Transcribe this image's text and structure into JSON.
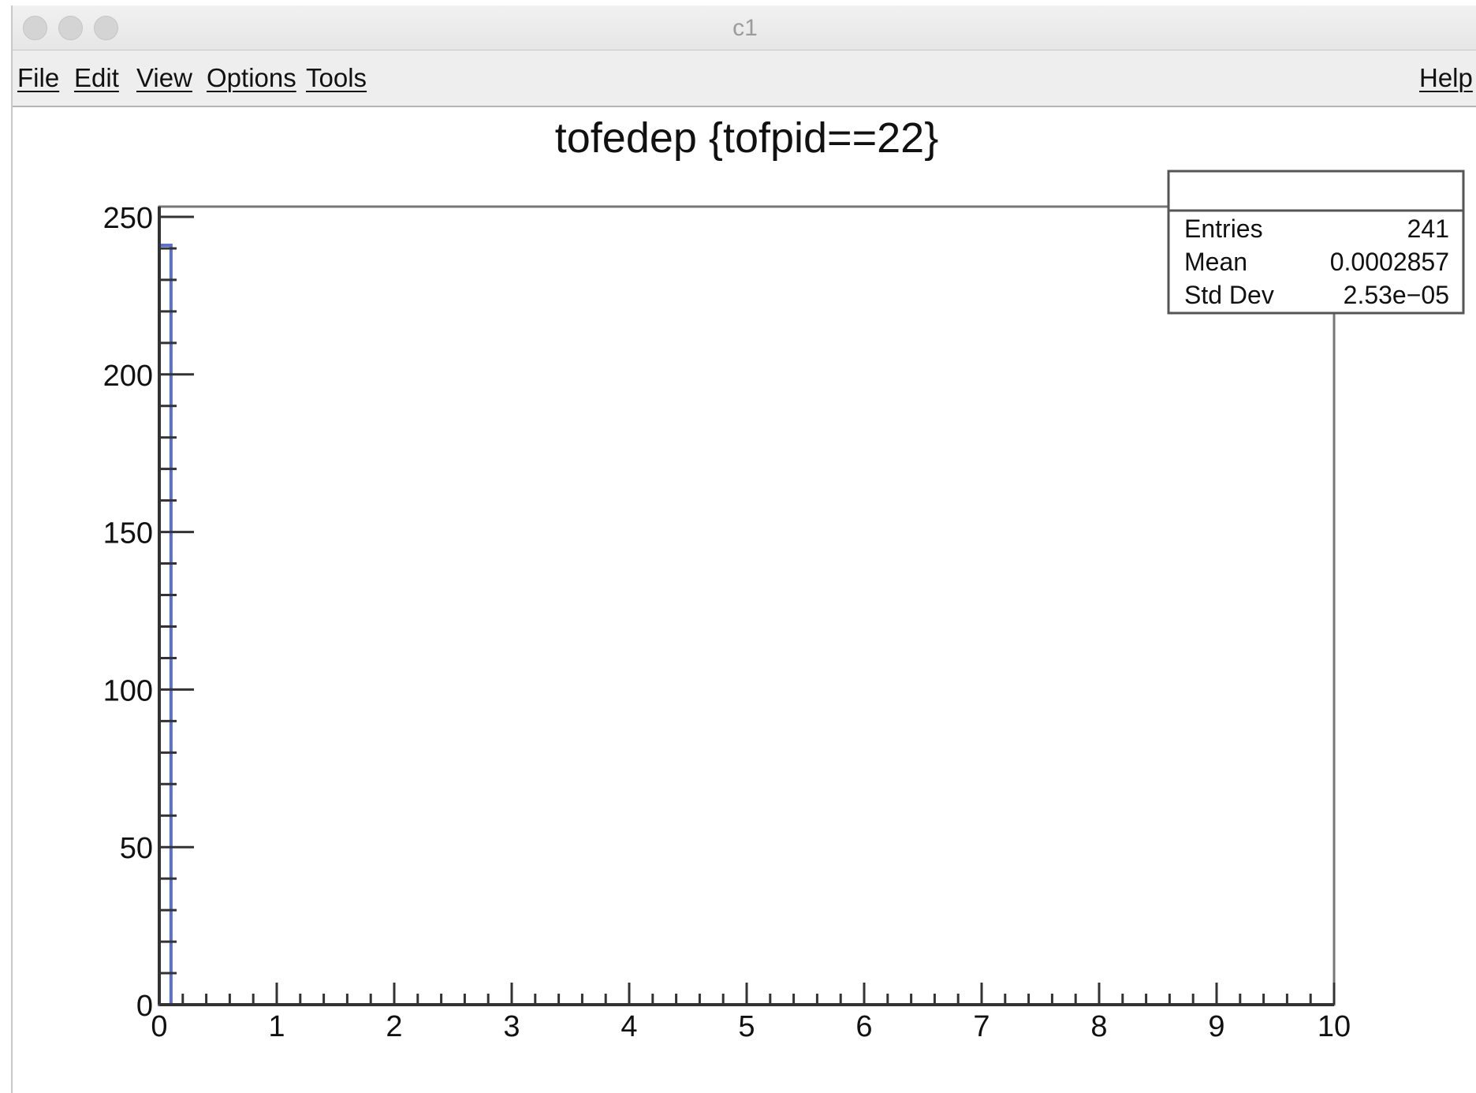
{
  "window": {
    "title": "c1"
  },
  "menu": {
    "file": "File",
    "edit": "Edit",
    "view": "View",
    "options": "Options",
    "tools": "Tools",
    "help": "Help"
  },
  "colors": {
    "histogram_line": "#5b6fd6",
    "frame": "#333333"
  },
  "chart_data": {
    "type": "bar",
    "title": "tofedep {tofpid==22}",
    "xlabel": "",
    "ylabel": "",
    "xlim": [
      0,
      10
    ],
    "ylim": [
      0,
      250
    ],
    "x_ticks": [
      0,
      1,
      2,
      3,
      4,
      5,
      6,
      7,
      8,
      9,
      10
    ],
    "y_ticks": [
      0,
      50,
      100,
      150,
      200,
      250
    ],
    "bins": [
      {
        "x_low": 0.0,
        "x_high": 0.1,
        "count": 241
      }
    ],
    "stats": {
      "name": "",
      "rows": [
        {
          "label": "Entries",
          "value": "241"
        },
        {
          "label": "Mean",
          "value": "0.0002857"
        },
        {
          "label": "Std Dev",
          "value": "2.53e−05"
        }
      ]
    },
    "grid": false,
    "legend": "top-right"
  }
}
